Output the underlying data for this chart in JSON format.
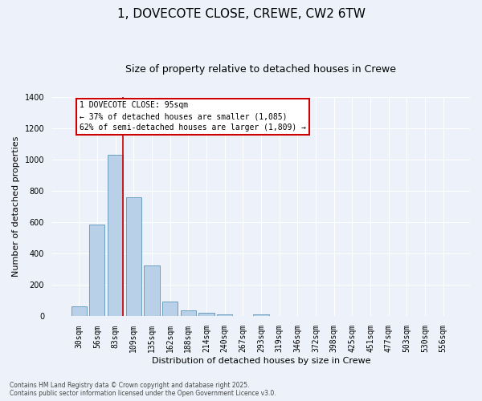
{
  "title": "1, DOVECOTE CLOSE, CREWE, CW2 6TW",
  "subtitle": "Size of property relative to detached houses in Crewe",
  "xlabel": "Distribution of detached houses by size in Crewe",
  "ylabel": "Number of detached properties",
  "categories": [
    "30sqm",
    "56sqm",
    "83sqm",
    "109sqm",
    "135sqm",
    "162sqm",
    "188sqm",
    "214sqm",
    "240sqm",
    "267sqm",
    "293sqm",
    "319sqm",
    "346sqm",
    "372sqm",
    "398sqm",
    "425sqm",
    "451sqm",
    "477sqm",
    "503sqm",
    "530sqm",
    "556sqm"
  ],
  "values": [
    65,
    585,
    1030,
    760,
    325,
    95,
    38,
    22,
    14,
    0,
    14,
    0,
    0,
    0,
    0,
    0,
    0,
    0,
    0,
    0,
    0
  ],
  "bar_color": "#b8d0e8",
  "bar_edge_color": "#6a9ec0",
  "background_color": "#edf2fa",
  "grid_color": "#ffffff",
  "red_line_color": "#cc0000",
  "red_line_x": 2.42,
  "annotation_text": "1 DOVECOTE CLOSE: 95sqm\n← 37% of detached houses are smaller (1,085)\n62% of semi-detached houses are larger (1,809) →",
  "annotation_box_facecolor": "#ffffff",
  "annotation_box_edgecolor": "#cc0000",
  "ylim": [
    0,
    1400
  ],
  "yticks": [
    0,
    200,
    400,
    600,
    800,
    1000,
    1200,
    1400
  ],
  "footer1": "Contains HM Land Registry data © Crown copyright and database right 2025.",
  "footer2": "Contains public sector information licensed under the Open Government Licence v3.0.",
  "title_fontsize": 11,
  "subtitle_fontsize": 9,
  "tick_fontsize": 7,
  "ylabel_fontsize": 8,
  "xlabel_fontsize": 8,
  "annotation_fontsize": 7
}
